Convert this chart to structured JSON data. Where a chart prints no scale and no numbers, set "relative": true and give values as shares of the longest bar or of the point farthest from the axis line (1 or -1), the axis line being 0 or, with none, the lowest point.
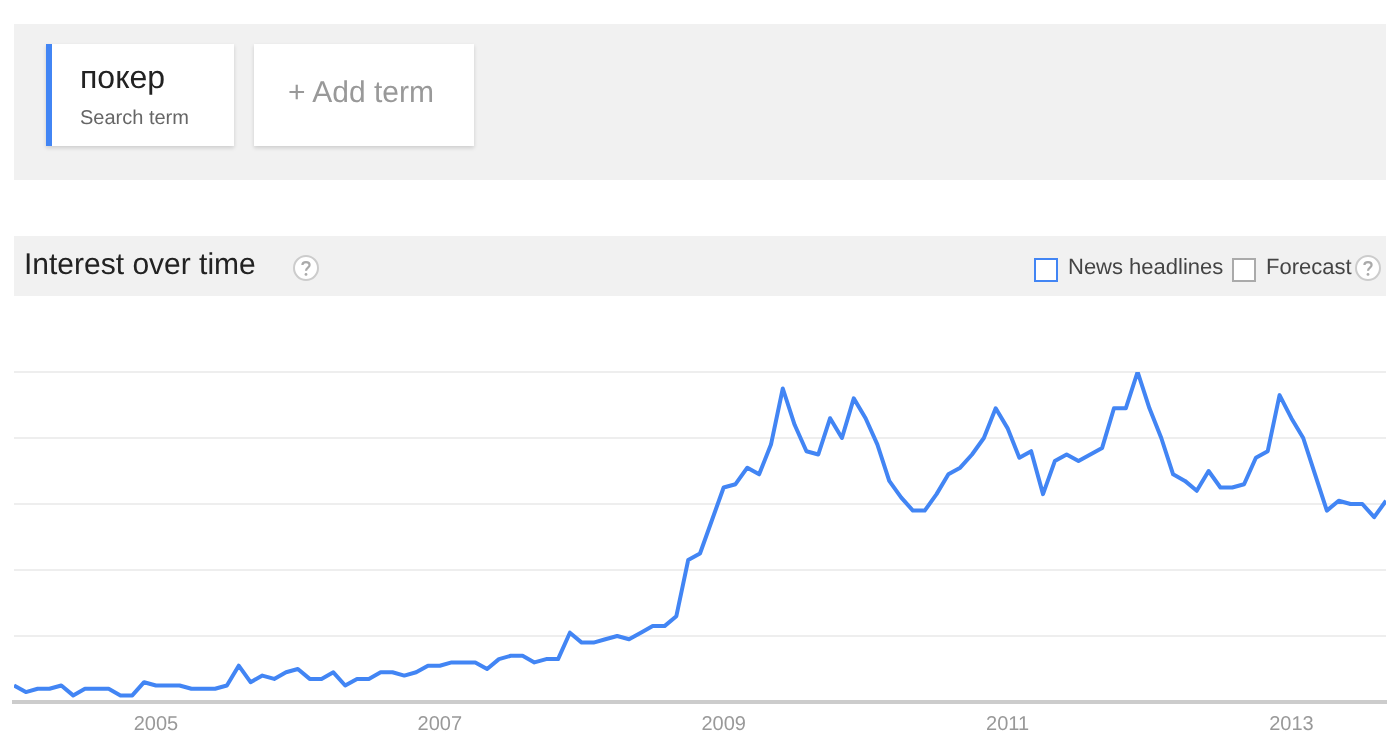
{
  "chart_data": {
    "type": "line",
    "title": "Interest over time",
    "relative": true,
    "grid": "y",
    "legend": "top left",
    "marker": "none",
    "line_style": "solid",
    "x": [
      "2004-01",
      "2004-02",
      "2004-03",
      "2004-04",
      "2004-05",
      "2004-06",
      "2004-07",
      "2004-08",
      "2004-09",
      "2004-10",
      "2004-11",
      "2004-12",
      "2005-01",
      "2005-02",
      "2005-03",
      "2005-04",
      "2005-05",
      "2005-06",
      "2005-07",
      "2005-08",
      "2005-09",
      "2005-10",
      "2005-11",
      "2005-12",
      "2006-01",
      "2006-02",
      "2006-03",
      "2006-04",
      "2006-05",
      "2006-06",
      "2006-07",
      "2006-08",
      "2006-09",
      "2006-10",
      "2006-11",
      "2006-12",
      "2007-01",
      "2007-02",
      "2007-03",
      "2007-04",
      "2007-05",
      "2007-06",
      "2007-07",
      "2007-08",
      "2007-09",
      "2007-10",
      "2007-11",
      "2007-12",
      "2008-01",
      "2008-02",
      "2008-03",
      "2008-04",
      "2008-05",
      "2008-06",
      "2008-07",
      "2008-08",
      "2008-09",
      "2008-10",
      "2008-11",
      "2008-12",
      "2009-01",
      "2009-02",
      "2009-03",
      "2009-04",
      "2009-05",
      "2009-06",
      "2009-07",
      "2009-08",
      "2009-09",
      "2009-10",
      "2009-11",
      "2009-12",
      "2010-01",
      "2010-02",
      "2010-03",
      "2010-04",
      "2010-05",
      "2010-06",
      "2010-07",
      "2010-08",
      "2010-09",
      "2010-10",
      "2010-11",
      "2010-12",
      "2011-01",
      "2011-02",
      "2011-03",
      "2011-04",
      "2011-05",
      "2011-06",
      "2011-07",
      "2011-08",
      "2011-09",
      "2011-10",
      "2011-11",
      "2011-12",
      "2012-01",
      "2012-02",
      "2012-03",
      "2012-04",
      "2012-05",
      "2012-06",
      "2012-07",
      "2012-08",
      "2012-09",
      "2012-10",
      "2012-11",
      "2012-12",
      "2013-01",
      "2013-02",
      "2013-03",
      "2013-04",
      "2013-05",
      "2013-06",
      "2013-07",
      "2013-08",
      "2013-09"
    ],
    "xlim": [
      "2004-01",
      "2013-09"
    ],
    "xticks": [
      {
        "value": "2005-01",
        "label": "2005"
      },
      {
        "value": "2007-01",
        "label": "2007"
      },
      {
        "value": "2009-01",
        "label": "2009"
      },
      {
        "value": "2011-01",
        "label": "2011"
      },
      {
        "value": "2013-01",
        "label": "2013"
      }
    ],
    "series": [
      {
        "name": "покер",
        "color": "#4285f4",
        "values": [
          0.05,
          0.03,
          0.04,
          0.04,
          0.05,
          0.02,
          0.04,
          0.04,
          0.04,
          0.02,
          0.02,
          0.06,
          0.05,
          0.05,
          0.05,
          0.04,
          0.04,
          0.04,
          0.05,
          0.11,
          0.06,
          0.08,
          0.07,
          0.09,
          0.1,
          0.07,
          0.07,
          0.09,
          0.05,
          0.07,
          0.07,
          0.09,
          0.09,
          0.08,
          0.09,
          0.11,
          0.11,
          0.12,
          0.12,
          0.12,
          0.1,
          0.13,
          0.14,
          0.14,
          0.12,
          0.13,
          0.13,
          0.21,
          0.18,
          0.18,
          0.19,
          0.2,
          0.19,
          0.21,
          0.23,
          0.23,
          0.26,
          0.43,
          0.45,
          0.55,
          0.65,
          0.66,
          0.71,
          0.69,
          0.78,
          0.95,
          0.84,
          0.76,
          0.75,
          0.86,
          0.8,
          0.92,
          0.86,
          0.78,
          0.67,
          0.62,
          0.58,
          0.58,
          0.63,
          0.69,
          0.71,
          0.75,
          0.8,
          0.89,
          0.83,
          0.74,
          0.76,
          0.63,
          0.73,
          0.75,
          0.73,
          0.75,
          0.77,
          0.89,
          0.89,
          1.0,
          0.89,
          0.8,
          0.69,
          0.67,
          0.64,
          0.7,
          0.65,
          0.65,
          0.66,
          0.74,
          0.76,
          0.93,
          0.86,
          0.8,
          0.69,
          0.58,
          0.61,
          0.6,
          0.6,
          0.56,
          0.61
        ]
      }
    ],
    "annotations": [
      "Search term",
      "+ Add term",
      "News headlines",
      "Forecast"
    ]
  }
}
